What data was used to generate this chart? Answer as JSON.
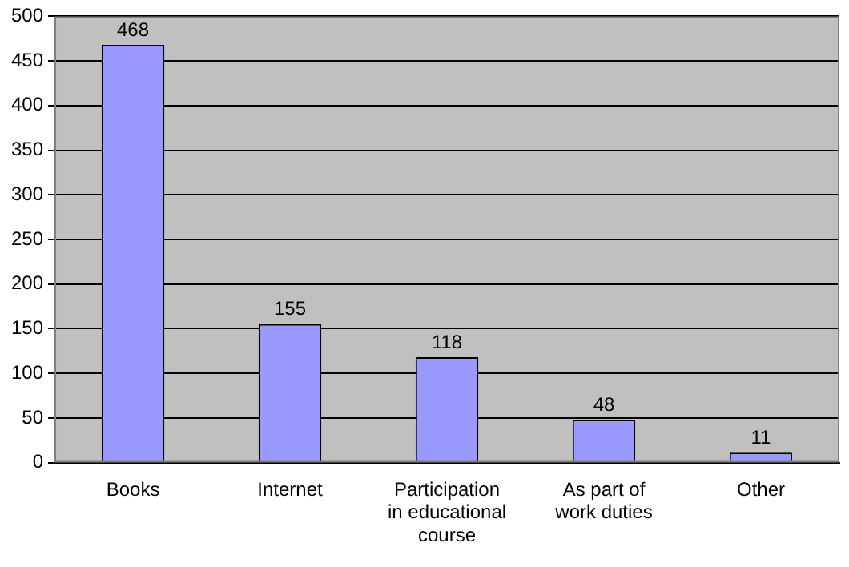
{
  "chart_data": {
    "type": "bar",
    "categories": [
      "Books",
      "Internet",
      "Participation in educational course",
      "As part of work duties",
      "Other"
    ],
    "values": [
      468,
      155,
      118,
      48,
      11
    ],
    "color": "#9999ff",
    "ylim": [
      0,
      500
    ],
    "yticks": [
      0,
      50,
      100,
      150,
      200,
      250,
      300,
      350,
      400,
      450,
      500
    ],
    "grid": "y",
    "data_labels": true,
    "legend": false
  }
}
